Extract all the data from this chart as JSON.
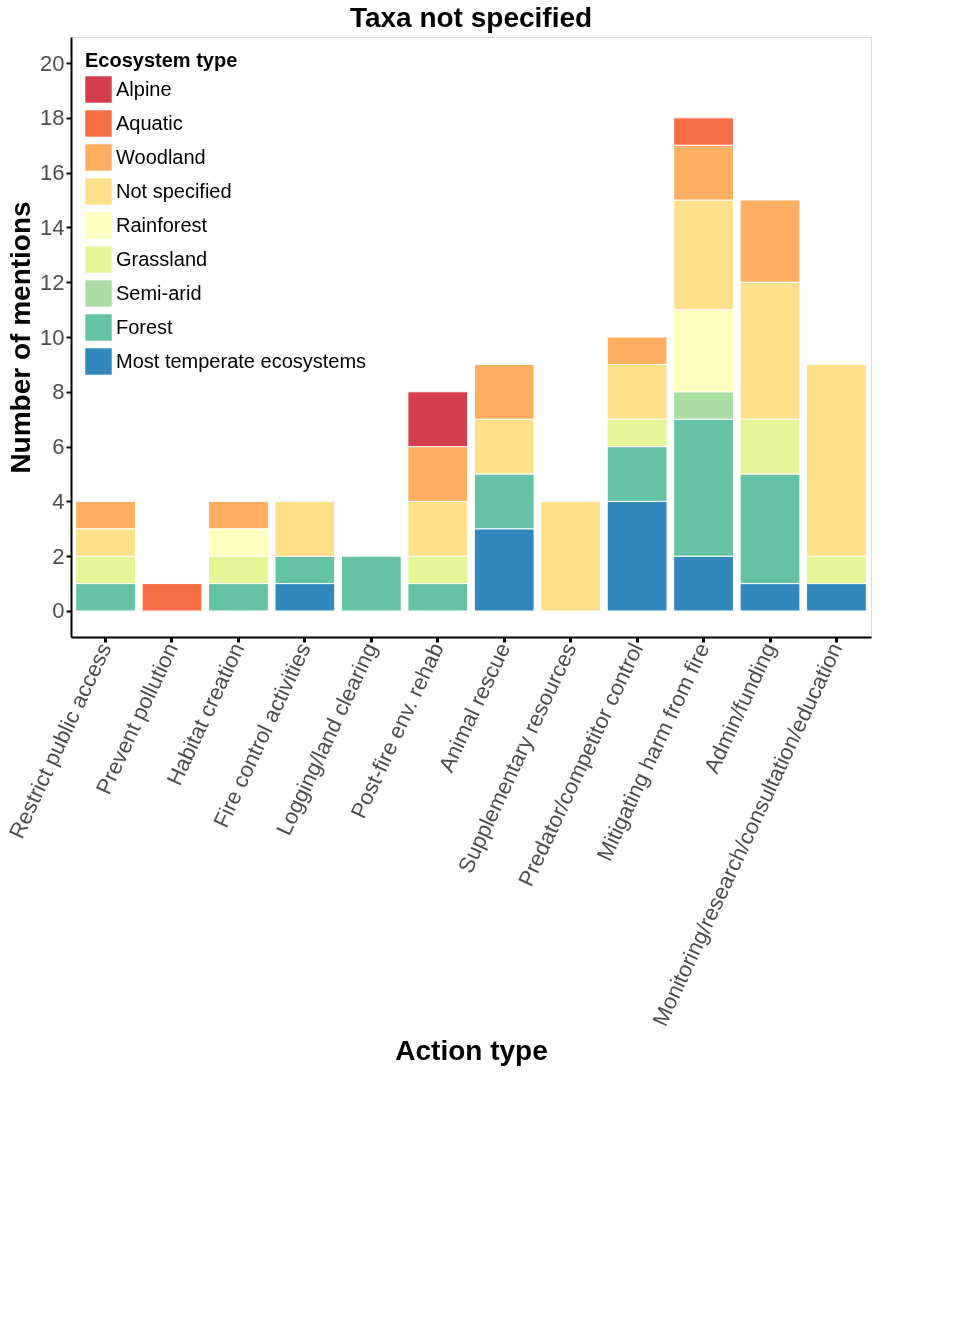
{
  "chart_data": {
    "type": "bar",
    "stacked": true,
    "title": "Taxa not specified",
    "xlabel": "Action type",
    "ylabel": "Number of mentions",
    "legend_title": "Ecosystem type",
    "legend": "top left",
    "grid": false,
    "categories": [
      "Restrict public access",
      "Prevent pollution",
      "Habitat creation",
      "Fire control activities",
      "Logging/land clearing",
      "Post-fire env. rehab",
      "Animal rescue",
      "Supplementary resources",
      "Predator/competitor control",
      "Mitigating harm from fire",
      "Admin/funding",
      "Monitoring/research/consultation/education"
    ],
    "ylim": [
      -0.95,
      20.95
    ],
    "yticks": [
      0,
      2,
      4,
      6,
      8,
      10,
      12,
      14,
      16,
      18,
      20
    ],
    "series": [
      {
        "name": "Most temperate ecosystems",
        "color": "#3288bd",
        "values": [
          null,
          null,
          null,
          1,
          null,
          null,
          3,
          null,
          4,
          2,
          1,
          1
        ]
      },
      {
        "name": "Forest",
        "color": "#66c2a5",
        "values": [
          1,
          null,
          1,
          1,
          2,
          1,
          2,
          null,
          2,
          5,
          4,
          null
        ]
      },
      {
        "name": "Semi-arid",
        "color": "#abdda4",
        "values": [
          null,
          null,
          null,
          null,
          null,
          null,
          null,
          null,
          null,
          1,
          null,
          null
        ]
      },
      {
        "name": "Grassland",
        "color": "#e6f598",
        "values": [
          1,
          null,
          1,
          null,
          null,
          1,
          null,
          null,
          1,
          null,
          2,
          1
        ]
      },
      {
        "name": "Rainforest",
        "color": "#ffffbf",
        "values": [
          null,
          null,
          1,
          null,
          null,
          null,
          null,
          null,
          null,
          3,
          null,
          null
        ]
      },
      {
        "name": "Not specified",
        "color": "#fee08b",
        "values": [
          1,
          null,
          null,
          2,
          null,
          2,
          2,
          4,
          2,
          4,
          5,
          7
        ]
      },
      {
        "name": "Woodland",
        "color": "#fdae61",
        "values": [
          1,
          null,
          1,
          null,
          null,
          2,
          2,
          null,
          1,
          2,
          3,
          null
        ]
      },
      {
        "name": "Aquatic",
        "color": "#f46d43",
        "values": [
          null,
          1,
          null,
          null,
          null,
          null,
          null,
          null,
          null,
          1,
          null,
          null
        ]
      },
      {
        "name": "Alpine",
        "color": "#d53e4f",
        "values": [
          null,
          null,
          null,
          null,
          null,
          2,
          null,
          null,
          null,
          null,
          null,
          null
        ]
      }
    ]
  }
}
